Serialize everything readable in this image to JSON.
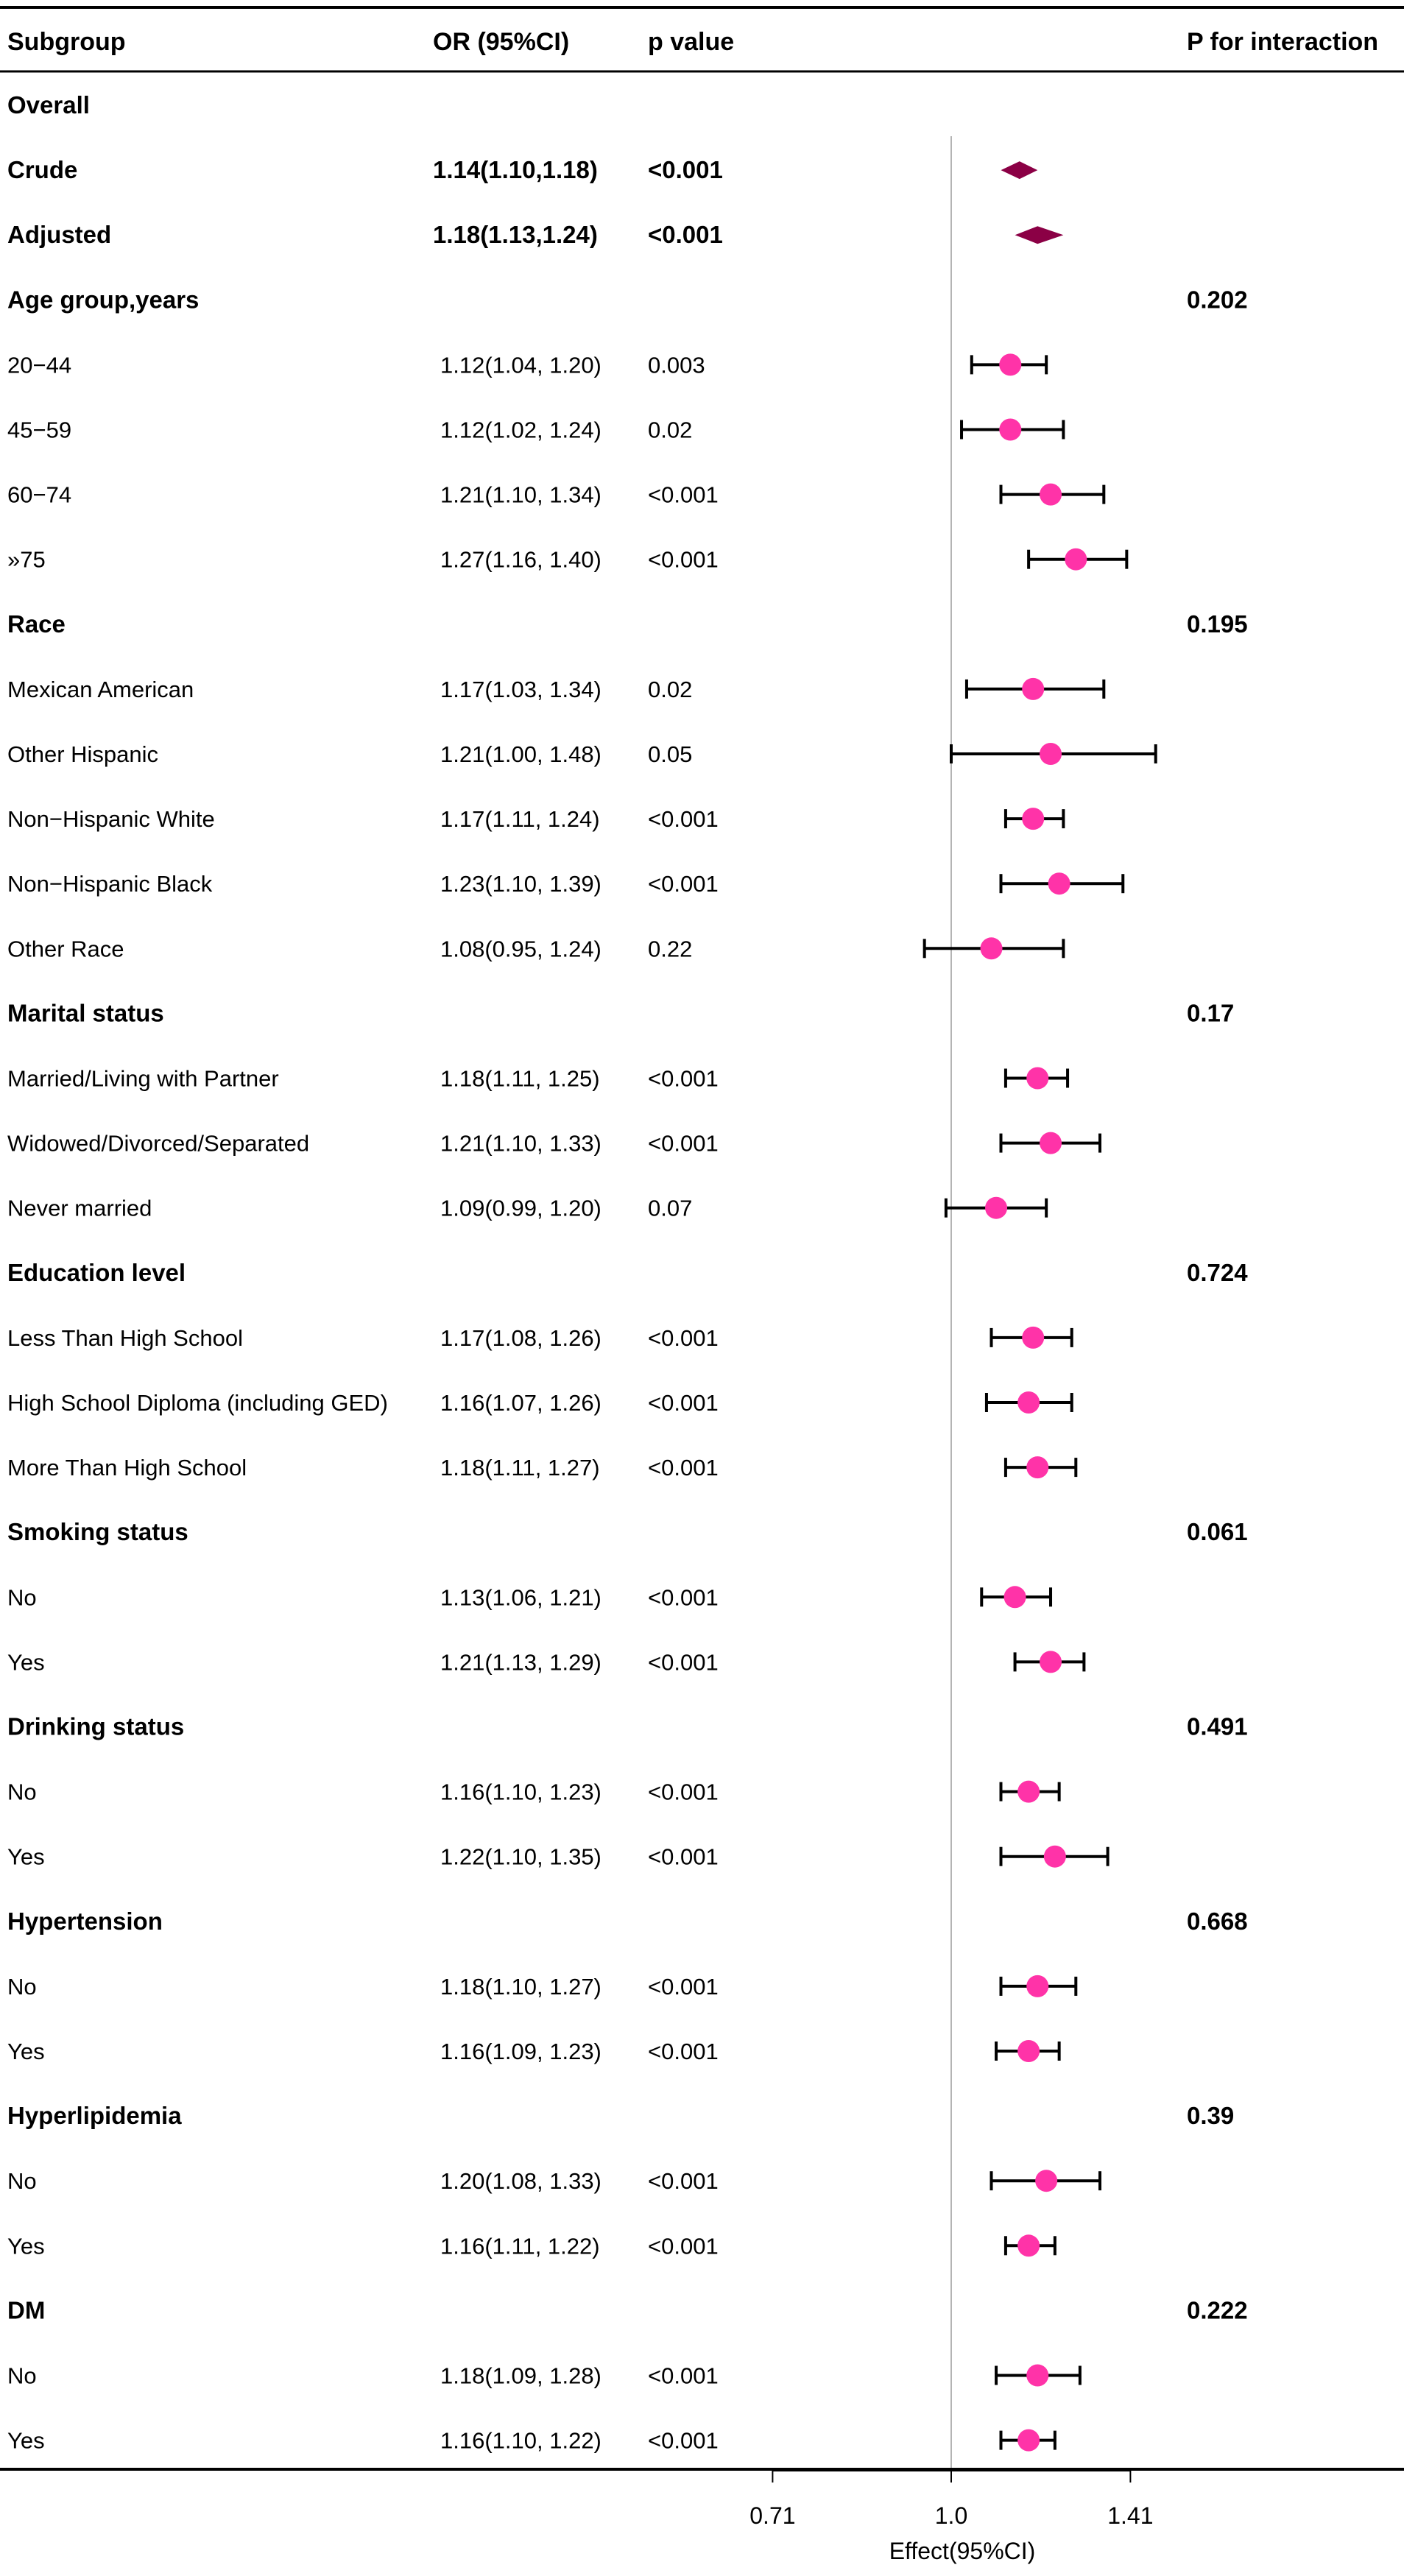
{
  "header": {
    "subgroup": "Subgroup",
    "or": "OR (95%CI)",
    "pvalue": "p value",
    "pint": "P for interaction"
  },
  "chart_data": {
    "type": "forest",
    "title": "",
    "xlabel": "Effect(95%CI)",
    "xscale": "log",
    "xlim": [
      0.5,
      2.0
    ],
    "xticks": [
      {
        "value": 0.71,
        "label": "0.71"
      },
      {
        "value": 1.0,
        "label": "1.0"
      },
      {
        "value": 1.41,
        "label": "1.41"
      }
    ],
    "reference_line": 1.0,
    "colors": {
      "diamond": "#8b0045",
      "point": "#ff33a8",
      "ci": "#000000",
      "reference": "#b4b4b4",
      "axis": "#000000"
    },
    "rows": [
      {
        "label": "Overall",
        "kind": "section"
      },
      {
        "label": "Crude",
        "kind": "summary",
        "or_text": "1.14(1.10,1.18)",
        "p_text": "<0.001",
        "or": 1.14,
        "lo": 1.1,
        "hi": 1.18
      },
      {
        "label": "Adjusted",
        "kind": "summary",
        "or_text": "1.18(1.13,1.24)",
        "p_text": "<0.001",
        "or": 1.18,
        "lo": 1.13,
        "hi": 1.24
      },
      {
        "label": "Age group,years",
        "kind": "section",
        "p_int": "0.202"
      },
      {
        "label": "20−44",
        "kind": "item",
        "or_text": "1.12(1.04, 1.20)",
        "p_text": "0.003",
        "or": 1.12,
        "lo": 1.04,
        "hi": 1.2
      },
      {
        "label": "45−59",
        "kind": "item",
        "or_text": "1.12(1.02, 1.24)",
        "p_text": "0.02",
        "or": 1.12,
        "lo": 1.02,
        "hi": 1.24
      },
      {
        "label": "60−74",
        "kind": "item",
        "or_text": "1.21(1.10, 1.34)",
        "p_text": "<0.001",
        "or": 1.21,
        "lo": 1.1,
        "hi": 1.34
      },
      {
        "label": "»75",
        "kind": "item",
        "or_text": "1.27(1.16, 1.40)",
        "p_text": "<0.001",
        "or": 1.27,
        "lo": 1.16,
        "hi": 1.4
      },
      {
        "label": "Race",
        "kind": "section",
        "p_int": "0.195"
      },
      {
        "label": "Mexican American",
        "kind": "item",
        "or_text": "1.17(1.03, 1.34)",
        "p_text": "0.02",
        "or": 1.17,
        "lo": 1.03,
        "hi": 1.34
      },
      {
        "label": "Other Hispanic",
        "kind": "item",
        "or_text": "1.21(1.00, 1.48)",
        "p_text": "0.05",
        "or": 1.21,
        "lo": 1.0,
        "hi": 1.48
      },
      {
        "label": "Non−Hispanic White",
        "kind": "item",
        "or_text": "1.17(1.11, 1.24)",
        "p_text": "<0.001",
        "or": 1.17,
        "lo": 1.11,
        "hi": 1.24
      },
      {
        "label": "Non−Hispanic Black",
        "kind": "item",
        "or_text": "1.23(1.10, 1.39)",
        "p_text": "<0.001",
        "or": 1.23,
        "lo": 1.1,
        "hi": 1.39
      },
      {
        "label": "Other Race",
        "kind": "item",
        "or_text": "1.08(0.95, 1.24)",
        "p_text": "0.22",
        "or": 1.08,
        "lo": 0.95,
        "hi": 1.24
      },
      {
        "label": "Marital status",
        "kind": "section",
        "p_int": "0.17"
      },
      {
        "label": "Married/Living with Partner",
        "kind": "item",
        "or_text": "1.18(1.11, 1.25)",
        "p_text": "<0.001",
        "or": 1.18,
        "lo": 1.11,
        "hi": 1.25
      },
      {
        "label": "Widowed/Divorced/Separated",
        "kind": "item",
        "or_text": "1.21(1.10, 1.33)",
        "p_text": "<0.001",
        "or": 1.21,
        "lo": 1.1,
        "hi": 1.33
      },
      {
        "label": "Never married",
        "kind": "item",
        "or_text": "1.09(0.99, 1.20)",
        "p_text": "0.07",
        "or": 1.09,
        "lo": 0.99,
        "hi": 1.2
      },
      {
        "label": "Education level",
        "kind": "section",
        "p_int": "0.724"
      },
      {
        "label": "Less Than High School",
        "kind": "item",
        "or_text": "1.17(1.08, 1.26)",
        "p_text": "<0.001",
        "or": 1.17,
        "lo": 1.08,
        "hi": 1.26
      },
      {
        "label": "High School Diploma (including GED)",
        "kind": "item",
        "or_text": "1.16(1.07, 1.26)",
        "p_text": "<0.001",
        "or": 1.16,
        "lo": 1.07,
        "hi": 1.26
      },
      {
        "label": "More Than High School",
        "kind": "item",
        "or_text": "1.18(1.11, 1.27)",
        "p_text": "<0.001",
        "or": 1.18,
        "lo": 1.11,
        "hi": 1.27
      },
      {
        "label": "Smoking status",
        "kind": "section",
        "p_int": "0.061"
      },
      {
        "label": "No",
        "kind": "item",
        "or_text": "1.13(1.06, 1.21)",
        "p_text": "<0.001",
        "or": 1.13,
        "lo": 1.06,
        "hi": 1.21
      },
      {
        "label": "Yes",
        "kind": "item",
        "or_text": "1.21(1.13, 1.29)",
        "p_text": "<0.001",
        "or": 1.21,
        "lo": 1.13,
        "hi": 1.29
      },
      {
        "label": "Drinking status",
        "kind": "section",
        "p_int": "0.491"
      },
      {
        "label": "No",
        "kind": "item",
        "or_text": "1.16(1.10, 1.23)",
        "p_text": "<0.001",
        "or": 1.16,
        "lo": 1.1,
        "hi": 1.23
      },
      {
        "label": "Yes",
        "kind": "item",
        "or_text": "1.22(1.10, 1.35)",
        "p_text": "<0.001",
        "or": 1.22,
        "lo": 1.1,
        "hi": 1.35
      },
      {
        "label": "Hypertension",
        "kind": "section",
        "p_int": "0.668"
      },
      {
        "label": "No",
        "kind": "item",
        "or_text": "1.18(1.10, 1.27)",
        "p_text": "<0.001",
        "or": 1.18,
        "lo": 1.1,
        "hi": 1.27
      },
      {
        "label": "Yes",
        "kind": "item",
        "or_text": "1.16(1.09, 1.23)",
        "p_text": "<0.001",
        "or": 1.16,
        "lo": 1.09,
        "hi": 1.23
      },
      {
        "label": "Hyperlipidemia",
        "kind": "section",
        "p_int": "0.39"
      },
      {
        "label": "No",
        "kind": "item",
        "or_text": "1.20(1.08, 1.33)",
        "p_text": "<0.001",
        "or": 1.2,
        "lo": 1.08,
        "hi": 1.33
      },
      {
        "label": "Yes",
        "kind": "item",
        "or_text": "1.16(1.11, 1.22)",
        "p_text": "<0.001",
        "or": 1.16,
        "lo": 1.11,
        "hi": 1.22
      },
      {
        "label": "DM",
        "kind": "section",
        "p_int": "0.222"
      },
      {
        "label": "No",
        "kind": "item",
        "or_text": "1.18(1.09, 1.28)",
        "p_text": "<0.001",
        "or": 1.18,
        "lo": 1.09,
        "hi": 1.28
      },
      {
        "label": "Yes",
        "kind": "item",
        "or_text": "1.16(1.10, 1.22)",
        "p_text": "<0.001",
        "or": 1.16,
        "lo": 1.1,
        "hi": 1.22
      }
    ]
  }
}
